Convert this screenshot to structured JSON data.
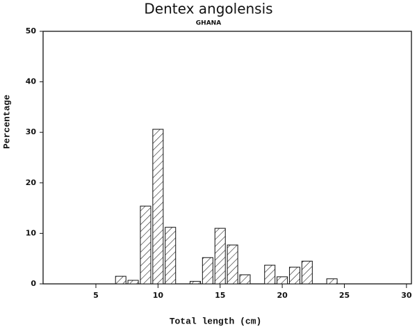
{
  "chart_data": {
    "type": "bar",
    "title": "Dentex angolensis",
    "subtitle": "GHANA",
    "x_label": "Total length (cm)",
    "y_label": "Percentage",
    "x": [
      7,
      8,
      9,
      10,
      11,
      13,
      14,
      15,
      16,
      17,
      19,
      20,
      21,
      22,
      24
    ],
    "values": [
      1.5,
      0.7,
      15.4,
      30.6,
      11.2,
      0.5,
      5.2,
      11.0,
      7.7,
      1.8,
      3.7,
      1.4,
      3.3,
      4.5,
      1.0
    ],
    "xlim": [
      0.75,
      30.4
    ],
    "xticks": [
      5,
      10,
      15,
      20,
      25,
      30
    ],
    "ylim": [
      0,
      50
    ],
    "yticks": [
      0,
      10,
      20,
      30,
      40,
      50
    ]
  }
}
